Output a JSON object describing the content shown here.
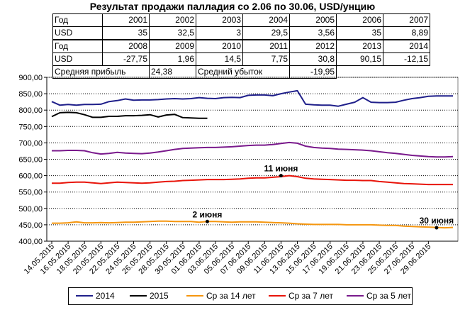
{
  "title": "Результат продажи палладия со 2.06 по 30.06, USD/унцию",
  "table": {
    "header_label": "Год",
    "value_label": "USD",
    "rows1_years": [
      "2001",
      "2002",
      "2003",
      "2004",
      "2005",
      "2006",
      "2007"
    ],
    "rows1_values": [
      "35",
      "32,5",
      "3",
      "29,5",
      "3,56",
      "35",
      "8,89"
    ],
    "rows2_years": [
      "2008",
      "2009",
      "2010",
      "2011",
      "2012",
      "2013",
      "2014"
    ],
    "rows2_values": [
      "-27,75",
      "1,96",
      "14,5",
      "7,75",
      "30,8",
      "90,15",
      "-12,15"
    ],
    "avg_profit_label": "Средняя прибыль",
    "avg_profit_value": "24,38",
    "avg_loss_label": "Средний убыток",
    "avg_loss_value": "-19,95"
  },
  "chart_data": {
    "type": "line",
    "ylim": [
      400,
      900
    ],
    "y_ticks": [
      "400,00",
      "450,00",
      "500,00",
      "550,00",
      "600,00",
      "650,00",
      "700,00",
      "750,00",
      "800,00",
      "850,00",
      "900,00"
    ],
    "y_tick_values": [
      400,
      450,
      500,
      550,
      600,
      650,
      700,
      750,
      800,
      850,
      900
    ],
    "x_tick_labels": [
      "14.05.2015",
      "16.05.2015",
      "18.05.2015",
      "20.05.2015",
      "22.05.2015",
      "24.05.2015",
      "26.05.2015",
      "28.05.2015",
      "30.05.2015",
      "01.06.2015",
      "03.06.2015",
      "05.06.2015",
      "07.06.2015",
      "09.06.2015",
      "11.06.2015",
      "13.06.2015",
      "15.06.2015",
      "17.06.2015",
      "19.06.2015",
      "21.06.2015",
      "23.06.2015",
      "25.06.2015",
      "27.06.2015",
      "29.06.2015"
    ],
    "grid": true,
    "legend_position": "bottom",
    "annotations": [
      {
        "text": "11 июня",
        "x_index": 28,
        "y": 600
      },
      {
        "text": "2 июня",
        "x_index": 19,
        "y": 460
      },
      {
        "text": "30 июня",
        "x_index": 47,
        "y": 441
      }
    ],
    "series": [
      {
        "name": "2014",
        "color": "#1f1f8a",
        "values": [
          826,
          815,
          817,
          815,
          817,
          817,
          818,
          826,
          829,
          834,
          830,
          831,
          831,
          832,
          834,
          835,
          834,
          835,
          838,
          836,
          835,
          838,
          839,
          838,
          845,
          846,
          846,
          844,
          850,
          855,
          859,
          818,
          816,
          815,
          815,
          812,
          818,
          824,
          838,
          824,
          823,
          823,
          824,
          830,
          835,
          838,
          842,
          843,
          843,
          843
        ]
      },
      {
        "name": "2015",
        "color": "#000000",
        "values": [
          780,
          792,
          793,
          792,
          786,
          778,
          778,
          781,
          781,
          783,
          783,
          784,
          786,
          779,
          785,
          787,
          777,
          776,
          775,
          775
        ]
      },
      {
        "name": "Ср за 14 лет",
        "color": "#f5960f",
        "values": [
          455,
          455,
          456,
          459,
          456,
          456,
          457,
          456,
          457,
          458,
          458,
          459,
          460,
          461,
          461,
          460,
          460,
          460,
          458,
          460,
          460,
          459,
          458,
          459,
          459,
          459,
          458,
          457,
          456,
          455,
          453,
          452,
          451,
          451,
          451,
          451,
          450,
          450,
          450,
          450,
          449,
          448,
          448,
          446,
          445,
          444,
          443,
          442,
          441,
          442
        ]
      },
      {
        "name": "Ср за 7 лет",
        "color": "#e8140a",
        "values": [
          577,
          577,
          579,
          580,
          580,
          578,
          576,
          578,
          580,
          579,
          578,
          577,
          578,
          580,
          582,
          583,
          585,
          586,
          587,
          588,
          588,
          588,
          589,
          590,
          592,
          593,
          593,
          595,
          597,
          600,
          597,
          592,
          590,
          589,
          588,
          587,
          586,
          586,
          585,
          585,
          582,
          580,
          578,
          576,
          575,
          574,
          573,
          573,
          573,
          573
        ]
      },
      {
        "name": "Ср за 5 лет",
        "color": "#7a1a8c",
        "values": [
          676,
          676,
          677,
          677,
          676,
          670,
          666,
          668,
          671,
          669,
          668,
          667,
          669,
          672,
          676,
          680,
          683,
          684,
          685,
          686,
          686,
          687,
          688,
          690,
          692,
          693,
          693,
          695,
          698,
          701,
          699,
          690,
          686,
          684,
          683,
          681,
          680,
          679,
          678,
          676,
          673,
          670,
          668,
          665,
          662,
          660,
          658,
          657,
          657,
          658
        ]
      }
    ]
  }
}
